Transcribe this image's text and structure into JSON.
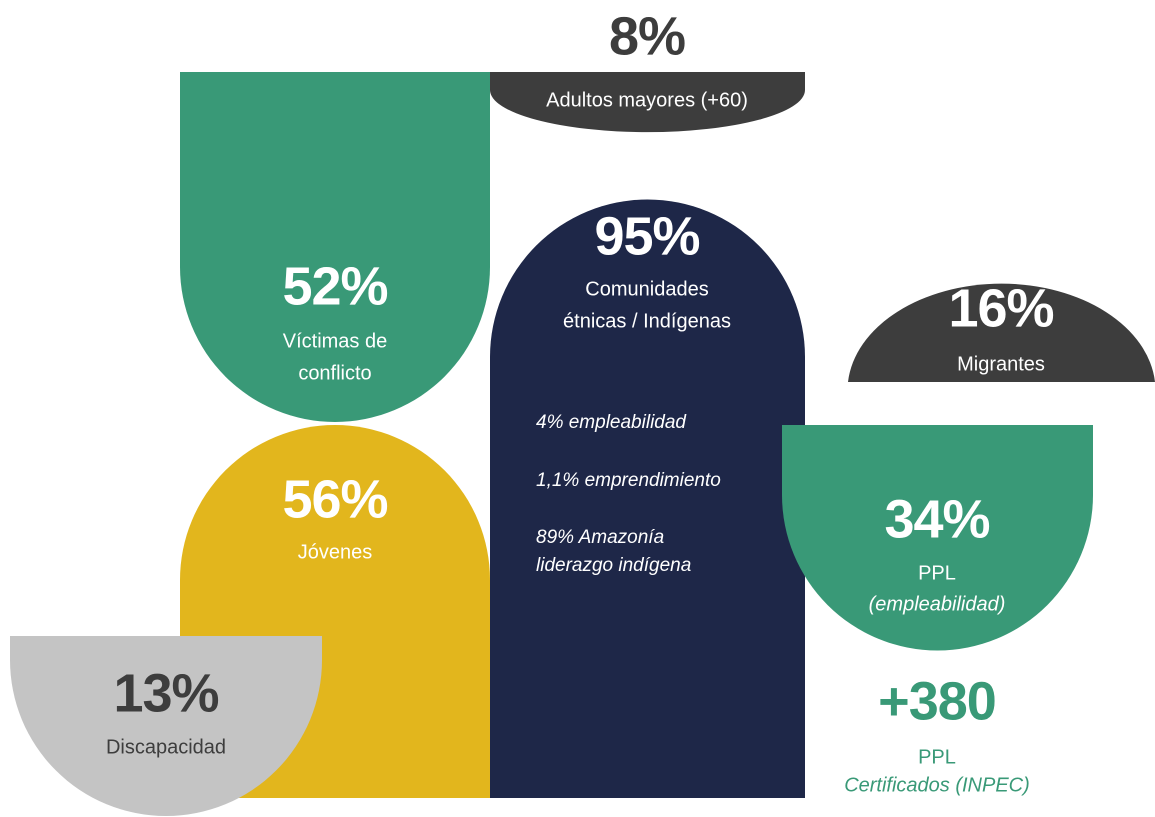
{
  "blocks": [
    {
      "value": "8%",
      "label": [
        "Adultos mayores (+60)"
      ]
    },
    {
      "value": "52%",
      "label": [
        "Víctimas de",
        "conflicto"
      ]
    },
    {
      "value": "95%",
      "label": [
        "Comunidades",
        "étnicas / Indígenas"
      ],
      "details": [
        "4% empleabilidad",
        "1,1% emprendimiento",
        "89% Amazonía",
        "liderazgo indígena"
      ]
    },
    {
      "value": "16%",
      "label": [
        "Migrantes"
      ]
    },
    {
      "value": "56%",
      "label": [
        "Jóvenes"
      ]
    },
    {
      "value": "34%",
      "label": [
        "PPL",
        "(empleabilidad)"
      ]
    },
    {
      "value": "13%",
      "label": [
        "Discapacidad"
      ]
    },
    {
      "value": "+380",
      "label": [
        "PPL",
        "Certificados (INPEC)"
      ]
    }
  ]
}
